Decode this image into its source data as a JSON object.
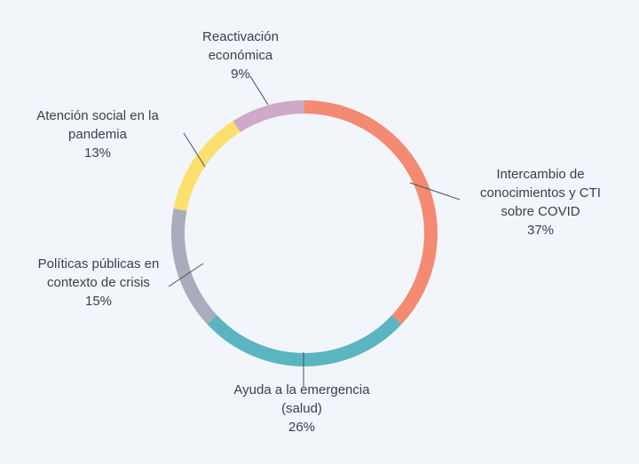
{
  "chart_data": {
    "type": "pie",
    "variant": "donut",
    "title": "",
    "legend": "none",
    "slices": [
      {
        "label": "Intercambio de conocimientos y CTI sobre COVID",
        "label_lines": [
          "Intercambio de",
          "conocimientos y CTI",
          "sobre COVID"
        ],
        "value": 37,
        "value_label": "37%",
        "color": "#f48a72"
      },
      {
        "label": "Ayuda a la emergencia (salud)",
        "label_lines": [
          "Ayuda a la emergencia",
          "(salud)"
        ],
        "value": 26,
        "value_label": "26%",
        "color": "#5ab5c0"
      },
      {
        "label": "Políticas públicas en contexto de crisis",
        "label_lines": [
          "Políticas públicas en",
          "contexto de crisis"
        ],
        "value": 15,
        "value_label": "15%",
        "color": "#a8acbd"
      },
      {
        "label": "Atención social en la pandemia",
        "label_lines": [
          "Atención social en la",
          "pandemia"
        ],
        "value": 13,
        "value_label": "13%",
        "color": "#fcdf6d"
      },
      {
        "label": "Reactivación económica",
        "label_lines": [
          "Reactivación",
          "económica"
        ],
        "value": 9,
        "value_label": "9%",
        "color": "#cfa9c7"
      }
    ]
  }
}
